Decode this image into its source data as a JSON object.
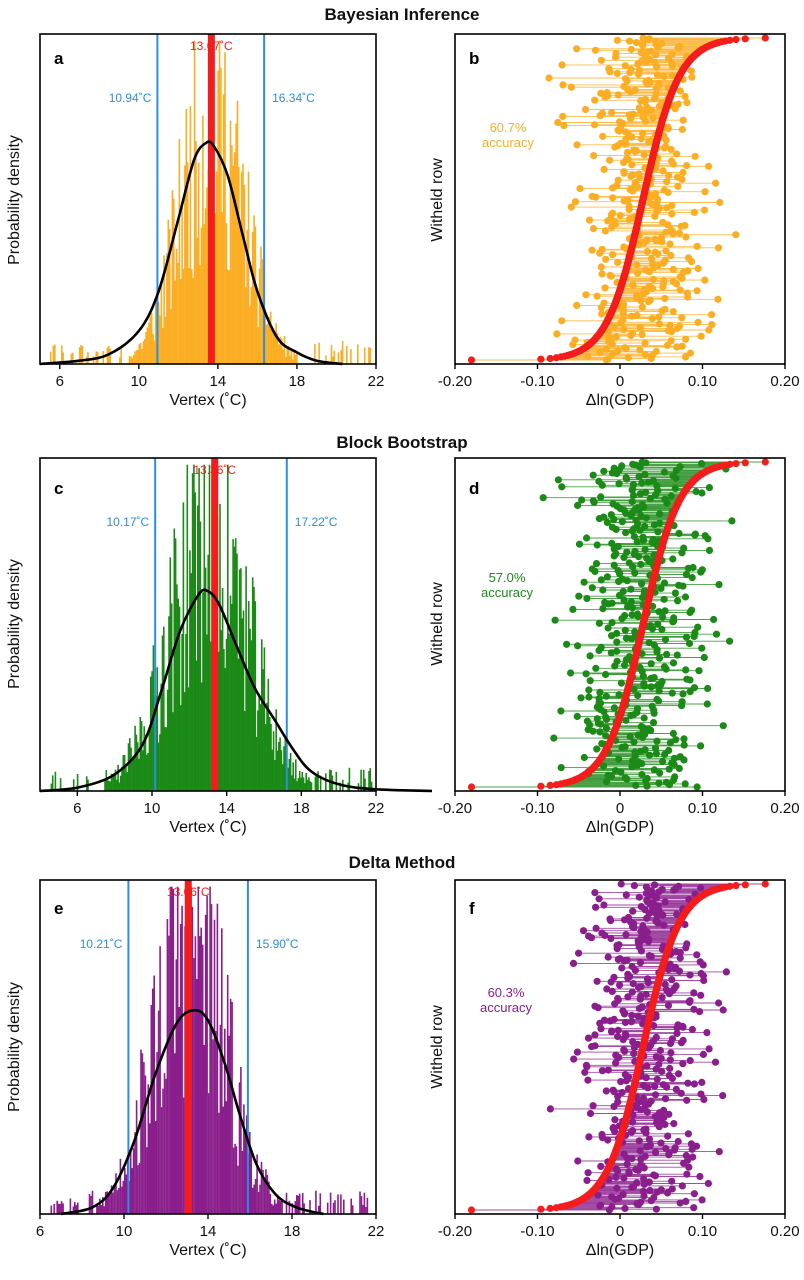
{
  "colors": {
    "orange": "#FBAE24",
    "green": "#1B8A17",
    "purple": "#8A1E8C",
    "red": "#F41C1C",
    "blue": "#2A8EE6",
    "black": "#000000"
  },
  "chart_data": [
    {
      "panel": "a",
      "type": "histogram",
      "section_title": "Bayesian Inference",
      "xlabel": "Vertex (˚C)",
      "ylabel": "Probability density",
      "xlim": [
        5,
        22
      ],
      "xticks": [
        6,
        10,
        14,
        18,
        22
      ],
      "color_key": "orange",
      "distribution": {
        "mean": 13.67,
        "sd": 1.6,
        "peak_fraction": 0.68,
        "bar_scale": 1.28
      },
      "kde": [
        [
          5.0,
          0.0
        ],
        [
          7.0,
          0.01
        ],
        [
          8.5,
          0.03
        ],
        [
          10.0,
          0.1
        ],
        [
          11.0,
          0.22
        ],
        [
          12.0,
          0.44
        ],
        [
          12.8,
          0.62
        ],
        [
          13.4,
          0.67
        ],
        [
          13.8,
          0.66
        ],
        [
          14.5,
          0.57
        ],
        [
          15.3,
          0.38
        ],
        [
          16.0,
          0.22
        ],
        [
          17.0,
          0.08
        ],
        [
          18.0,
          0.035
        ],
        [
          19.0,
          0.01
        ],
        [
          20.3,
          0.0
        ]
      ],
      "markers": [
        {
          "value": 13.67,
          "label": "13.67˚C",
          "kind": "estimate"
        },
        {
          "value": 10.94,
          "label": "10.94˚C",
          "kind": "ci"
        },
        {
          "value": 16.34,
          "label": "16.34˚C",
          "kind": "ci"
        }
      ]
    },
    {
      "panel": "b",
      "type": "scatter",
      "xlabel": "Δln(GDP)",
      "ylabel": "Witheld row",
      "xlim": [
        -0.2,
        0.2
      ],
      "xticks": [
        -0.2,
        -0.1,
        0,
        0.1,
        0.2
      ],
      "xtick_labels": [
        "-0.20",
        "-0.10",
        "0",
        "0.10",
        "0.20"
      ],
      "color_key": "orange",
      "accuracy": "60.7%",
      "accuracy_word": "accuracy",
      "spread": 0.05,
      "n_rows": 420
    },
    {
      "panel": "c",
      "type": "histogram",
      "section_title": "Block Bootstrap",
      "xlabel": "Vertex (˚C)",
      "ylabel": "Probability density",
      "xlim": [
        4,
        22
      ],
      "xticks": [
        6,
        10,
        14,
        18,
        22
      ],
      "color_key": "green",
      "distribution": {
        "mean": 13.0,
        "sd": 2.1,
        "peak_fraction": 0.6,
        "bar_scale": 1.5
      },
      "kde": [
        [
          4.0,
          0.0
        ],
        [
          6.0,
          0.01
        ],
        [
          8.0,
          0.05
        ],
        [
          9.5,
          0.14
        ],
        [
          10.5,
          0.3
        ],
        [
          11.5,
          0.48
        ],
        [
          12.5,
          0.59
        ],
        [
          13.0,
          0.6
        ],
        [
          13.6,
          0.56
        ],
        [
          14.5,
          0.44
        ],
        [
          15.5,
          0.31
        ],
        [
          16.5,
          0.22
        ],
        [
          17.5,
          0.13
        ],
        [
          18.5,
          0.06
        ],
        [
          20.0,
          0.02
        ],
        [
          22.0,
          0.005
        ],
        [
          25.0,
          0.0
        ]
      ],
      "markers": [
        {
          "value": 13.36,
          "label": "13.36˚C",
          "kind": "estimate"
        },
        {
          "value": 10.17,
          "label": "10.17˚C",
          "kind": "ci"
        },
        {
          "value": 17.22,
          "label": "17.22˚C",
          "kind": "ci"
        }
      ]
    },
    {
      "panel": "d",
      "type": "scatter",
      "xlabel": "Δln(GDP)",
      "ylabel": "Witheld row",
      "xlim": [
        -0.2,
        0.2
      ],
      "xticks": [
        -0.2,
        -0.1,
        0,
        0.1,
        0.2
      ],
      "xtick_labels": [
        "-0.20",
        "-0.10",
        "0",
        "0.10",
        "0.20"
      ],
      "color_key": "green",
      "accuracy": "57.0%",
      "accuracy_word": "accuracy",
      "spread": 0.055,
      "n_rows": 420
    },
    {
      "panel": "e",
      "type": "histogram",
      "section_title": "Delta Method",
      "xlabel": "Vertex (˚C)",
      "ylabel": "Probability density",
      "xlim": [
        6,
        22
      ],
      "xticks": [
        6,
        10,
        14,
        18,
        22
      ],
      "color_key": "purple",
      "distribution": {
        "mean": 13.1,
        "sd": 1.7,
        "peak_fraction": 0.62,
        "bar_scale": 1.55
      },
      "kde": [
        [
          7.0,
          0.0
        ],
        [
          8.5,
          0.02
        ],
        [
          9.5,
          0.08
        ],
        [
          10.5,
          0.22
        ],
        [
          11.5,
          0.42
        ],
        [
          12.5,
          0.57
        ],
        [
          13.3,
          0.61
        ],
        [
          14.0,
          0.58
        ],
        [
          14.8,
          0.45
        ],
        [
          15.5,
          0.3
        ],
        [
          16.3,
          0.15
        ],
        [
          17.2,
          0.06
        ],
        [
          18.2,
          0.02
        ],
        [
          19.5,
          0.0
        ]
      ],
      "markers": [
        {
          "value": 13.06,
          "label": "13.06˚C",
          "kind": "estimate"
        },
        {
          "value": 10.21,
          "label": "10.21˚C",
          "kind": "ci"
        },
        {
          "value": 15.9,
          "label": "15.90˚C",
          "kind": "ci"
        }
      ]
    },
    {
      "panel": "f",
      "type": "scatter",
      "xlabel": "Δln(GDP)",
      "ylabel": "Witheld row",
      "xlim": [
        -0.2,
        0.2
      ],
      "xticks": [
        -0.2,
        -0.1,
        0,
        0.1,
        0.2
      ],
      "xtick_labels": [
        "-0.20",
        "-0.10",
        "0",
        "0.10",
        "0.20"
      ],
      "color_key": "purple",
      "accuracy": "60.3%",
      "accuracy_word": "accuracy",
      "spread": 0.05,
      "n_rows": 420
    }
  ]
}
